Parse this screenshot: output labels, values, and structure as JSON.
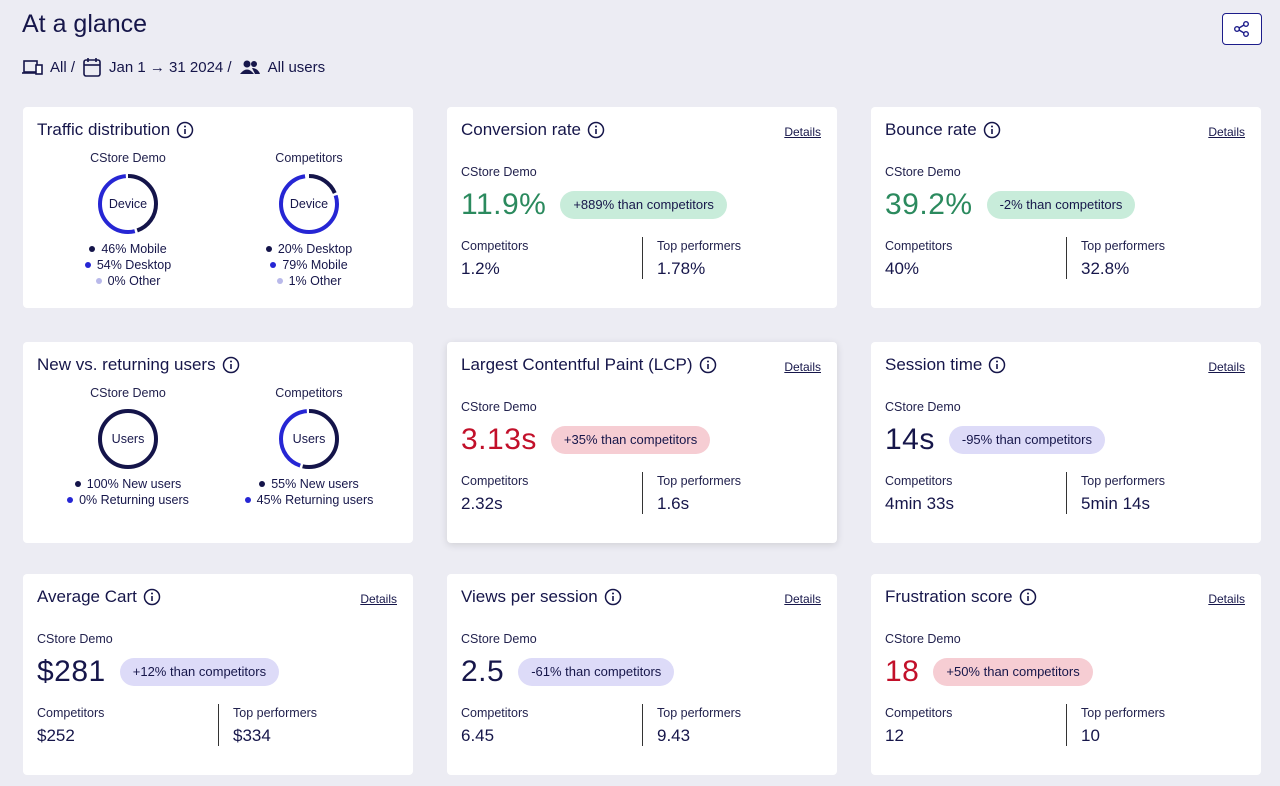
{
  "header": {
    "title": "At a glance",
    "filters": [
      "All /",
      "Jan 1 → 31 2024 /",
      "All users"
    ]
  },
  "cards": [
    {
      "kind": "donut",
      "title": "Traffic distribution",
      "groups": [
        {
          "name": "CStore Demo",
          "center": "Device",
          "segments": [
            {
              "value": 46,
              "label": "46% Mobile",
              "color": "#14144a"
            },
            {
              "value": 54,
              "label": "54% Desktop",
              "color": "#2626d4"
            },
            {
              "value": 0,
              "label": "0% Other",
              "color": "#b9b9ea"
            }
          ]
        },
        {
          "name": "Competitors",
          "center": "Device",
          "segments": [
            {
              "value": 20,
              "label": "20% Desktop",
              "color": "#14144a"
            },
            {
              "value": 79,
              "label": "79% Mobile",
              "color": "#2626d4"
            },
            {
              "value": 1,
              "label": "1% Other",
              "color": "#b9b9ea"
            }
          ]
        }
      ]
    },
    {
      "kind": "metric",
      "title": "Conversion rate",
      "details": "Details",
      "subject": "CStore Demo",
      "value": "11.9%",
      "tone": "green",
      "badge": "+889% than competitors",
      "competitors_label": "Competitors",
      "competitors": "1.2%",
      "top_label": "Top performers",
      "top": "1.78%"
    },
    {
      "kind": "metric",
      "title": "Bounce rate",
      "details": "Details",
      "subject": "CStore Demo",
      "value": "39.2%",
      "tone": "green",
      "badge": "-2% than competitors",
      "competitors_label": "Competitors",
      "competitors": "40%",
      "top_label": "Top performers",
      "top": "32.8%"
    },
    {
      "kind": "donut",
      "title": "New vs. returning users",
      "groups": [
        {
          "name": "CStore Demo",
          "center": "Users",
          "segments": [
            {
              "value": 100,
              "label": "100% New users",
              "color": "#14144a"
            },
            {
              "value": 0,
              "label": "0% Returning users",
              "color": "#2626d4"
            }
          ]
        },
        {
          "name": "Competitors",
          "center": "Users",
          "segments": [
            {
              "value": 55,
              "label": "55% New users",
              "color": "#14144a"
            },
            {
              "value": 45,
              "label": "45% Returning users",
              "color": "#2626d4"
            }
          ]
        }
      ]
    },
    {
      "kind": "metric",
      "title": "Largest Contentful Paint (LCP)",
      "details": "Details",
      "subject": "CStore Demo",
      "value": "3.13s",
      "tone": "red",
      "badge": "+35% than competitors",
      "competitors_label": "Competitors",
      "competitors": "2.32s",
      "top_label": "Top performers",
      "top": "1.6s"
    },
    {
      "kind": "metric",
      "title": "Session time",
      "details": "Details",
      "subject": "CStore Demo",
      "value": "14s",
      "tone": "neutral",
      "badge": "-95% than competitors",
      "competitors_label": "Competitors",
      "competitors": "4min 33s",
      "top_label": "Top performers",
      "top": "5min 14s"
    },
    {
      "kind": "metric",
      "title": "Average Cart",
      "details": "Details",
      "subject": "CStore Demo",
      "value": "$281",
      "tone": "neutral",
      "badge": "+12% than competitors",
      "competitors_label": "Competitors",
      "competitors": "$252",
      "top_label": "Top performers",
      "top": "$334"
    },
    {
      "kind": "metric",
      "title": "Views per session",
      "details": "Details",
      "subject": "CStore Demo",
      "value": "2.5",
      "tone": "neutral",
      "badge": "-61% than competitors",
      "competitors_label": "Competitors",
      "competitors": "6.45",
      "top_label": "Top performers",
      "top": "9.43"
    },
    {
      "kind": "metric",
      "title": "Frustration score",
      "details": "Details",
      "subject": "CStore Demo",
      "value": "18",
      "tone": "red",
      "badge": "+50% than competitors",
      "competitors_label": "Competitors",
      "competitors": "12",
      "top_label": "Top performers",
      "top": "10"
    }
  ]
}
